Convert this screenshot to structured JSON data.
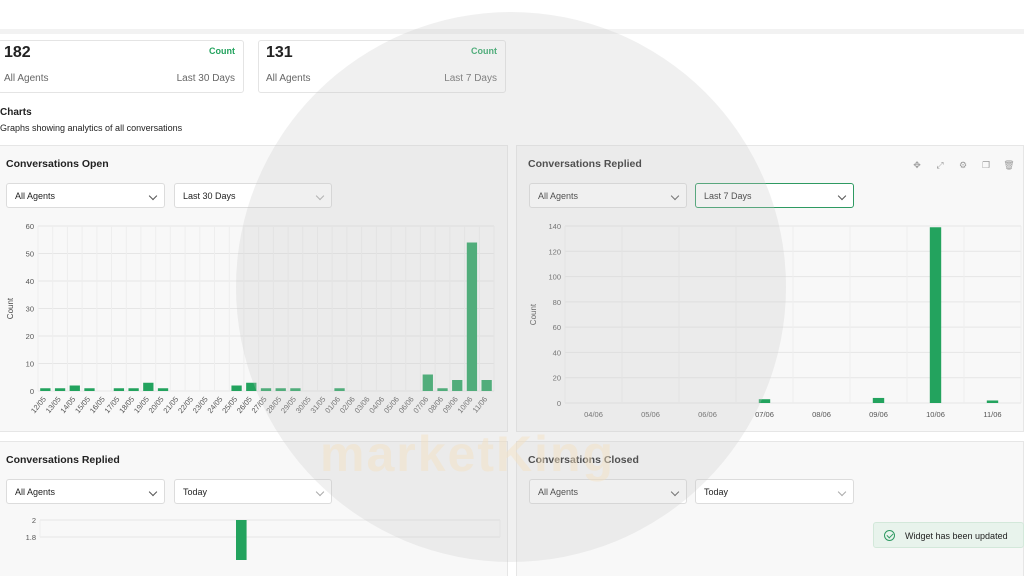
{
  "stats": [
    {
      "value": "182",
      "count_label": "Count",
      "agents": "All Agents",
      "range": "Last 30 Days"
    },
    {
      "value": "131",
      "count_label": "Count",
      "agents": "All Agents",
      "range": "Last 7 Days"
    }
  ],
  "charts_section": {
    "title": "Charts",
    "subtitle": "Graphs showing analytics of all conversations"
  },
  "panels": {
    "open": {
      "title": "Conversations Open",
      "agents": "All Agents",
      "range": "Last 30 Days"
    },
    "replied_7": {
      "title": "Conversations Replied",
      "agents": "All Agents",
      "range": "Last 7 Days"
    },
    "replied_today": {
      "title": "Conversations Replied",
      "agents": "All Agents",
      "range": "Today"
    },
    "closed": {
      "title": "Conversations Closed",
      "agents": "All Agents",
      "range": "Today"
    }
  },
  "toolbar_icons": [
    "move-icon",
    "expand-icon",
    "gear-icon",
    "copy-icon",
    "trash-icon"
  ],
  "toast": {
    "message": "Widget has been updated"
  },
  "watermark": "marketKing",
  "colors": {
    "accent": "#23a35e",
    "bar": "#23a35e"
  },
  "chart_data": [
    {
      "type": "bar",
      "title": "Conversations Open",
      "ylabel": "Count",
      "ylim": [
        0,
        60
      ],
      "yticks": [
        0,
        10,
        20,
        30,
        40,
        50,
        60
      ],
      "categories": [
        "12/05",
        "13/05",
        "14/05",
        "15/05",
        "16/05",
        "17/05",
        "18/05",
        "19/05",
        "20/05",
        "21/05",
        "22/05",
        "23/05",
        "24/05",
        "25/05",
        "26/05",
        "27/05",
        "28/05",
        "29/05",
        "30/05",
        "31/05",
        "01/06",
        "02/06",
        "03/06",
        "04/06",
        "05/06",
        "06/06",
        "07/06",
        "08/06",
        "09/06",
        "10/06",
        "11/06"
      ],
      "values": [
        1,
        1,
        2,
        1,
        0,
        1,
        1,
        3,
        1,
        0,
        0,
        0,
        0,
        2,
        3,
        1,
        1,
        1,
        0,
        0,
        1,
        0,
        0,
        0,
        0,
        0,
        6,
        1,
        4,
        54,
        4
      ],
      "grid": true
    },
    {
      "type": "bar",
      "title": "Conversations Replied",
      "ylabel": "Count",
      "ylim": [
        0,
        140
      ],
      "yticks": [
        0,
        20,
        40,
        60,
        80,
        100,
        120,
        140
      ],
      "categories": [
        "04/06",
        "05/06",
        "06/06",
        "07/06",
        "08/06",
        "09/06",
        "10/06",
        "11/06"
      ],
      "values": [
        0,
        0,
        0,
        3,
        0,
        4,
        139,
        2
      ],
      "grid": true
    },
    {
      "type": "bar",
      "title": "Conversations Replied",
      "ylim": [
        1.8,
        2.0
      ],
      "yticks": [
        1.8,
        2.0
      ],
      "categories": [
        ""
      ],
      "values": [
        2
      ],
      "grid": true
    }
  ]
}
